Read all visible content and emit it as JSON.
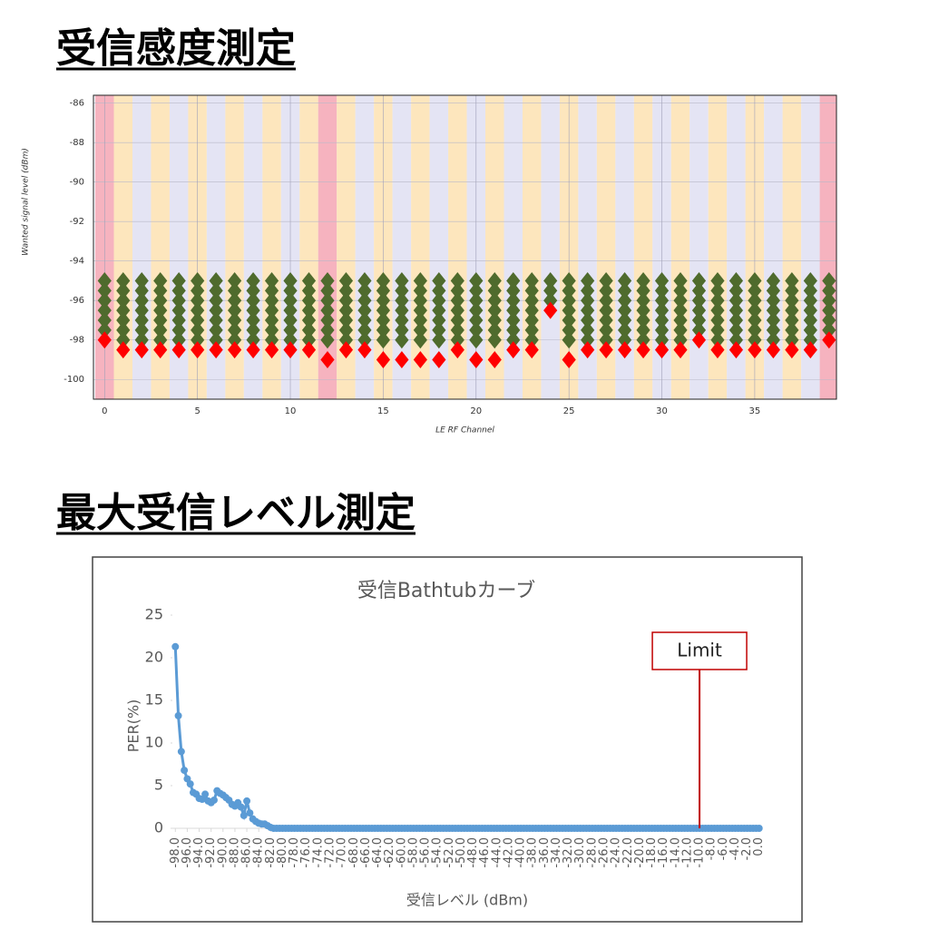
{
  "headings": [
    "受信感度測定",
    "最大受信レベル測定"
  ],
  "chart_data": [
    {
      "type": "scatter",
      "marker": "diamond",
      "grid": true,
      "xlabel": "LE RF Channel",
      "ylabel": "Wanted signal level (dBm)",
      "x": [
        0,
        1,
        2,
        3,
        4,
        5,
        6,
        7,
        8,
        9,
        10,
        11,
        12,
        13,
        14,
        15,
        16,
        17,
        18,
        19,
        20,
        21,
        22,
        23,
        24,
        25,
        26,
        27,
        28,
        29,
        30,
        31,
        32,
        33,
        34,
        35,
        36,
        37,
        38,
        39
      ],
      "xlim": [
        -0.6,
        39.4
      ],
      "xticks": [
        0,
        5,
        10,
        15,
        20,
        25,
        30,
        35
      ],
      "ylim": [
        -85.6,
        -101
      ],
      "yticks": [
        -86,
        -88,
        -90,
        -92,
        -94,
        -96,
        -98,
        -100
      ],
      "series": [
        {
          "color": "#4f6b2d",
          "values": [
            -95,
            -95,
            -95,
            -95,
            -95,
            -95,
            -95,
            -95,
            -95,
            -95,
            -95,
            -95,
            -95,
            -95,
            -95,
            -95,
            -95,
            -95,
            -95,
            -95,
            -95,
            -95,
            -95,
            -95,
            -95,
            -95,
            -95,
            -95,
            -95,
            -95,
            -95,
            -95,
            -95,
            -95,
            -95,
            -95,
            -95,
            -95,
            -95,
            -95
          ]
        },
        {
          "color": "#4f6b2d",
          "values": [
            -95.5,
            -95.5,
            -95.5,
            -95.5,
            -95.5,
            -95.5,
            -95.5,
            -95.5,
            -95.5,
            -95.5,
            -95.5,
            -95.5,
            -95.5,
            -95.5,
            -95.5,
            -95.5,
            -95.5,
            -95.5,
            -95.5,
            -95.5,
            -95.5,
            -95.5,
            -95.5,
            -95.5,
            -95.5,
            -95.5,
            -95.5,
            -95.5,
            -95.5,
            -95.5,
            -95.5,
            -95.5,
            -95.5,
            -95.5,
            -95.5,
            -95.5,
            -95.5,
            -95.5,
            -95.5,
            -95.5
          ]
        },
        {
          "color": "#4f6b2d",
          "values": [
            -96,
            -96,
            -96,
            -96,
            -96,
            -96,
            -96,
            -96,
            -96,
            -96,
            -96,
            -96,
            -96,
            -96,
            -96,
            -96,
            -96,
            -96,
            -96,
            -96,
            -96,
            -96,
            -96,
            -96,
            -96,
            -96,
            -96,
            -96,
            -96,
            -96,
            -96,
            -96,
            -96,
            -96,
            -96,
            -96,
            -96,
            -96,
            -96,
            -96
          ]
        },
        {
          "color": "#4f6b2d",
          "values": [
            -96.5,
            -96.5,
            -96.5,
            -96.5,
            -96.5,
            -96.5,
            -96.5,
            -96.5,
            -96.5,
            -96.5,
            -96.5,
            -96.5,
            -96.5,
            -96.5,
            -96.5,
            -96.5,
            -96.5,
            -96.5,
            -96.5,
            -96.5,
            -96.5,
            -96.5,
            -96.5,
            -96.5,
            null,
            -96.5,
            -96.5,
            -96.5,
            -96.5,
            -96.5,
            -96.5,
            -96.5,
            -96.5,
            -96.5,
            -96.5,
            -96.5,
            -96.5,
            -96.5,
            -96.5,
            -96.5
          ]
        },
        {
          "color": "#4f6b2d",
          "values": [
            -97,
            -97,
            -97,
            -97,
            -97,
            -97,
            -97,
            -97,
            -97,
            -97,
            -97,
            -97,
            -97,
            -97,
            -97,
            -97,
            -97,
            -97,
            -97,
            -97,
            -97,
            -97,
            -97,
            -97,
            null,
            -97,
            -97,
            -97,
            -97,
            -97,
            -97,
            -97,
            -97,
            -97,
            -97,
            -97,
            -97,
            -97,
            -97,
            -97
          ]
        },
        {
          "color": "#4f6b2d",
          "values": [
            -97.5,
            -97.5,
            -97.5,
            -97.5,
            -97.5,
            -97.5,
            -97.5,
            -97.5,
            -97.5,
            -97.5,
            -97.5,
            -97.5,
            -97.5,
            -97.5,
            -97.5,
            -97.5,
            -97.5,
            -97.5,
            -97.5,
            -97.5,
            -97.5,
            -97.5,
            -97.5,
            -97.5,
            null,
            -97.5,
            -97.5,
            -97.5,
            -97.5,
            -97.5,
            -97.5,
            -97.5,
            -97.5,
            -97.5,
            -97.5,
            -97.5,
            -97.5,
            -97.5,
            -97.5,
            -97.5
          ]
        },
        {
          "color": "#4f6b2d",
          "values": [
            null,
            -98,
            -98,
            -98,
            -98,
            -98,
            -98,
            -98,
            -98,
            -98,
            -98,
            -98,
            -98,
            -98,
            -98,
            -98,
            -98,
            -98,
            -98,
            -98,
            -98,
            -98,
            -98,
            -98,
            null,
            -98,
            -98,
            -98,
            -98,
            -98,
            -98,
            -98,
            null,
            -98,
            -98,
            -98,
            -98,
            -98,
            -98,
            null
          ]
        },
        {
          "color": "#ff0000",
          "values": [
            -98,
            -98.5,
            -98.5,
            -98.5,
            -98.5,
            -98.5,
            -98.5,
            -98.5,
            -98.5,
            -98.5,
            -98.5,
            -98.5,
            -99,
            -98.5,
            -98.5,
            -99,
            -99,
            -99,
            -99,
            -98.5,
            -99,
            -99,
            -98.5,
            -98.5,
            -96.5,
            -99,
            -98.5,
            -98.5,
            -98.5,
            -98.5,
            -98.5,
            -98.5,
            -98,
            -98.5,
            -98.5,
            -98.5,
            -98.5,
            -98.5,
            -98.5,
            -98
          ]
        }
      ]
    },
    {
      "type": "line",
      "title": "受信Bathtubカーブ",
      "xlabel": "受信レベル (dBm)",
      "ylabel": "PER(%)",
      "annotation": {
        "label": "Limit",
        "x": -10
      },
      "x": [
        -98,
        -97.5,
        -97,
        -96.5,
        -96,
        -95.5,
        -95,
        -94.5,
        -94,
        -93.5,
        -93,
        -92.5,
        -92,
        -91.5,
        -91,
        -90.5,
        -90,
        -89.5,
        -89,
        -88.5,
        -88,
        -87.5,
        -87,
        -86.5,
        -86,
        -85.5,
        -85,
        -84.5,
        -84,
        -83.5,
        -83,
        -82.5,
        -82,
        -81.5,
        -81,
        -80.5,
        -80,
        -79.5,
        -79,
        -78.5,
        -78,
        -77.5,
        -77,
        -76.5,
        -76,
        -75.5,
        -75,
        -74.5,
        -74,
        -73.5,
        -73,
        -72.5,
        -72,
        -71.5,
        -71,
        -70.5,
        -70,
        -69.5,
        -69,
        -68.5,
        -68,
        -67.5,
        -67,
        -66.5,
        -66,
        -65.5,
        -65,
        -64.5,
        -64,
        -63.5,
        -63,
        -62.5,
        -62,
        -61.5,
        -61,
        -60.5,
        -60,
        -59.5,
        -59,
        -58.5,
        -58,
        -57.5,
        -57,
        -56.5,
        -56,
        -55.5,
        -55,
        -54.5,
        -54,
        -53.5,
        -53,
        -52.5,
        -52,
        -51.5,
        -51,
        -50.5,
        -50,
        -49.5,
        -49,
        -48.5,
        -48,
        -47.5,
        -47,
        -46.5,
        -46,
        -45.5,
        -45,
        -44.5,
        -44,
        -43.5,
        -43,
        -42.5,
        -42,
        -41.5,
        -41,
        -40.5,
        -40,
        -39.5,
        -39,
        -38.5,
        -38,
        -37.5,
        -37,
        -36.5,
        -36,
        -35.5,
        -35,
        -34.5,
        -34,
        -33.5,
        -33,
        -32.5,
        -32,
        -31.5,
        -31,
        -30.5,
        -30,
        -29.5,
        -29,
        -28.5,
        -28,
        -27.5,
        -27,
        -26.5,
        -26,
        -25.5,
        -25,
        -24.5,
        -24,
        -23.5,
        -23,
        -22.5,
        -22,
        -21.5,
        -21,
        -20.5,
        -20,
        -19.5,
        -19,
        -18.5,
        -18,
        -17.5,
        -17,
        -16.5,
        -16,
        -15.5,
        -15,
        -14.5,
        -14,
        -13.5,
        -13,
        -12.5,
        -12,
        -11.5,
        -11,
        -10.5,
        -10,
        -9.5,
        -9,
        -8.5,
        -8,
        -7.5,
        -7,
        -6.5,
        -6,
        -5.5,
        -5,
        -4.5,
        -4,
        -3.5,
        -3,
        -2.5,
        -2,
        -1.5,
        -1,
        -0.5,
        0
      ],
      "xlim": [
        -98.5,
        0.5
      ],
      "xticks": [
        {
          "value": -98,
          "label": "-98.0"
        },
        {
          "value": -96,
          "label": "-96.0"
        },
        {
          "value": -94,
          "label": "-94.0"
        },
        {
          "value": -92,
          "label": "-92.0"
        },
        {
          "value": -90,
          "label": "-90.0"
        },
        {
          "value": -88,
          "label": "-88.0"
        },
        {
          "value": -86,
          "label": "-86.0"
        },
        {
          "value": -84,
          "label": "-84.0"
        },
        {
          "value": -82,
          "label": "-82.0"
        },
        {
          "value": -80,
          "label": "-80.0"
        },
        {
          "value": -78,
          "label": "-78.0"
        },
        {
          "value": -76,
          "label": "-76.0"
        },
        {
          "value": -74,
          "label": "-74.0"
        },
        {
          "value": -72,
          "label": "-72.0"
        },
        {
          "value": -70,
          "label": "-70.0"
        },
        {
          "value": -68,
          "label": "-68.0"
        },
        {
          "value": -66,
          "label": "-66.0"
        },
        {
          "value": -64,
          "label": "-64.0"
        },
        {
          "value": -62,
          "label": "-62.0"
        },
        {
          "value": -60,
          "label": "-60.0"
        },
        {
          "value": -58,
          "label": "-58.0"
        },
        {
          "value": -56,
          "label": "-56.0"
        },
        {
          "value": -54,
          "label": "-54.0"
        },
        {
          "value": -52,
          "label": "-52.0"
        },
        {
          "value": -50,
          "label": "-50.0"
        },
        {
          "value": -48,
          "label": "-48.0"
        },
        {
          "value": -46,
          "label": "-46.0"
        },
        {
          "value": -44,
          "label": "-44.0"
        },
        {
          "value": -42,
          "label": "-42.0"
        },
        {
          "value": -40,
          "label": "-40.0"
        },
        {
          "value": -38,
          "label": "-38.0"
        },
        {
          "value": -36,
          "label": "-36.0"
        },
        {
          "value": -34,
          "label": "-34.0"
        },
        {
          "value": -32,
          "label": "-32.0"
        },
        {
          "value": -30,
          "label": "-30.0"
        },
        {
          "value": -28,
          "label": "-28.0"
        },
        {
          "value": -26,
          "label": "-26.0"
        },
        {
          "value": -24,
          "label": "-24.0"
        },
        {
          "value": -22,
          "label": "-22.0"
        },
        {
          "value": -20,
          "label": "-20.0"
        },
        {
          "value": -18,
          "label": "-18.0"
        },
        {
          "value": -16,
          "label": "-16.0"
        },
        {
          "value": -14,
          "label": "-14.0"
        },
        {
          "value": -12,
          "label": "-12.0"
        },
        {
          "value": -10,
          "label": "-10.0"
        },
        {
          "value": -8,
          "label": "-8.0"
        },
        {
          "value": -6,
          "label": "-6.0"
        },
        {
          "value": -4,
          "label": "-4.0"
        },
        {
          "value": -2,
          "label": "-2.0"
        },
        {
          "value": 0,
          "label": "0.0"
        }
      ],
      "ylim": [
        0,
        25
      ],
      "yticks": [
        0,
        5,
        10,
        15,
        20,
        25
      ],
      "series": [
        {
          "color": "#5b9bd5",
          "values": [
            21.3,
            13.2,
            9.0,
            6.8,
            5.8,
            5.2,
            4.2,
            4.0,
            3.5,
            3.4,
            4.0,
            3.2,
            3.0,
            3.3,
            4.4,
            4.1,
            3.9,
            3.6,
            3.3,
            2.8,
            2.6,
            3.0,
            2.5,
            1.5,
            3.2,
            1.8,
            1.1,
            0.8,
            0.6,
            0.5,
            0.5,
            0.3,
            0.1,
            0,
            0,
            0,
            0,
            0,
            0,
            0,
            0,
            0,
            0,
            0,
            0,
            0,
            0,
            0,
            0,
            0,
            0,
            0,
            0,
            0,
            0,
            0,
            0,
            0,
            0,
            0,
            0,
            0,
            0,
            0,
            0,
            0,
            0,
            0,
            0,
            0,
            0,
            0,
            0,
            0,
            0,
            0,
            0,
            0,
            0,
            0,
            0,
            0,
            0,
            0,
            0,
            0,
            0,
            0,
            0,
            0,
            0,
            0,
            0,
            0,
            0,
            0,
            0,
            0,
            0,
            0,
            0,
            0,
            0,
            0,
            0,
            0,
            0,
            0,
            0,
            0,
            0,
            0,
            0,
            0,
            0,
            0,
            0,
            0,
            0,
            0,
            0,
            0,
            0,
            0,
            0,
            0,
            0,
            0,
            0,
            0,
            0,
            0,
            0,
            0,
            0,
            0,
            0,
            0,
            0,
            0,
            0,
            0,
            0,
            0,
            0,
            0,
            0,
            0,
            0,
            0,
            0,
            0,
            0,
            0,
            0,
            0,
            0,
            0,
            0,
            0,
            0,
            0,
            0,
            0,
            0,
            0,
            0,
            0,
            0,
            0,
            0,
            0,
            0,
            0,
            0,
            0,
            0,
            0,
            0,
            0,
            0,
            0,
            0,
            0,
            0,
            0,
            0,
            0,
            0,
            0,
            0,
            0,
            0,
            0,
            0,
            0,
            0
          ]
        }
      ]
    }
  ]
}
